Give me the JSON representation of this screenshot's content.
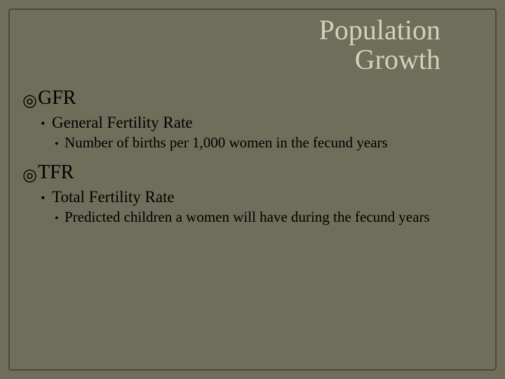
{
  "colors": {
    "background": "#6e6e5a",
    "frame_border": "#4a4a3c",
    "title_text": "#cfd4b8",
    "body_text": "#000000"
  },
  "typography": {
    "title_fontsize": 40,
    "lvl1_fontsize": 28,
    "lvl2_fontsize": 23,
    "lvl3_fontsize": 21,
    "font_family": "Georgia, serif"
  },
  "title": {
    "line1": "Population",
    "line2": "Growth"
  },
  "items": [
    {
      "bullet": "◎",
      "label": "GFR",
      "sub": {
        "bullet": "•",
        "label": "General Fertility Rate",
        "sub": {
          "bullet": "•",
          "label": "Number of births per 1,000 women in the fecund years"
        }
      }
    },
    {
      "bullet": "◎",
      "label": "TFR",
      "sub": {
        "bullet": "•",
        "label": "Total Fertility Rate",
        "sub": {
          "bullet": "•",
          "label": "Predicted children a women will have during the fecund years"
        }
      }
    }
  ]
}
